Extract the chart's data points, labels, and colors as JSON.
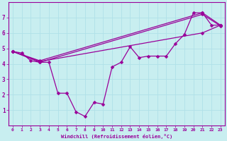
{
  "bg_color": "#c8eef0",
  "line_color": "#990099",
  "grid_color": "#b0e0e8",
  "xlim": [
    -0.5,
    23.5
  ],
  "ylim": [
    0,
    8
  ],
  "xticks": [
    0,
    1,
    2,
    3,
    4,
    5,
    6,
    7,
    8,
    9,
    10,
    11,
    12,
    13,
    14,
    15,
    16,
    17,
    18,
    19,
    20,
    21,
    22,
    23
  ],
  "yticks": [
    1,
    2,
    3,
    4,
    5,
    6,
    7
  ],
  "xlabel": "Windchill (Refroidissement éolien,°C)",
  "series": [
    {
      "x": [
        0,
        1,
        2,
        3,
        4,
        5,
        6,
        7,
        8,
        9,
        10,
        11,
        12,
        13,
        14,
        15,
        16,
        17,
        18,
        19,
        20,
        21,
        22,
        23
      ],
      "y": [
        4.8,
        4.7,
        4.2,
        4.1,
        4.1,
        2.1,
        2.1,
        0.9,
        0.6,
        1.5,
        1.4,
        3.8,
        4.1,
        5.1,
        4.4,
        4.5,
        4.5,
        4.5,
        5.3,
        5.9,
        7.3,
        7.3,
        6.5,
        6.5
      ]
    },
    {
      "x": [
        0,
        3,
        21,
        23
      ],
      "y": [
        4.8,
        4.2,
        7.3,
        6.5
      ]
    },
    {
      "x": [
        0,
        3,
        21,
        23
      ],
      "y": [
        4.8,
        4.1,
        7.2,
        6.45
      ]
    },
    {
      "x": [
        0,
        3,
        21,
        23
      ],
      "y": [
        4.8,
        4.15,
        6.0,
        6.5
      ]
    }
  ],
  "marker": "D",
  "markersize": 2.5,
  "linewidth": 0.9
}
